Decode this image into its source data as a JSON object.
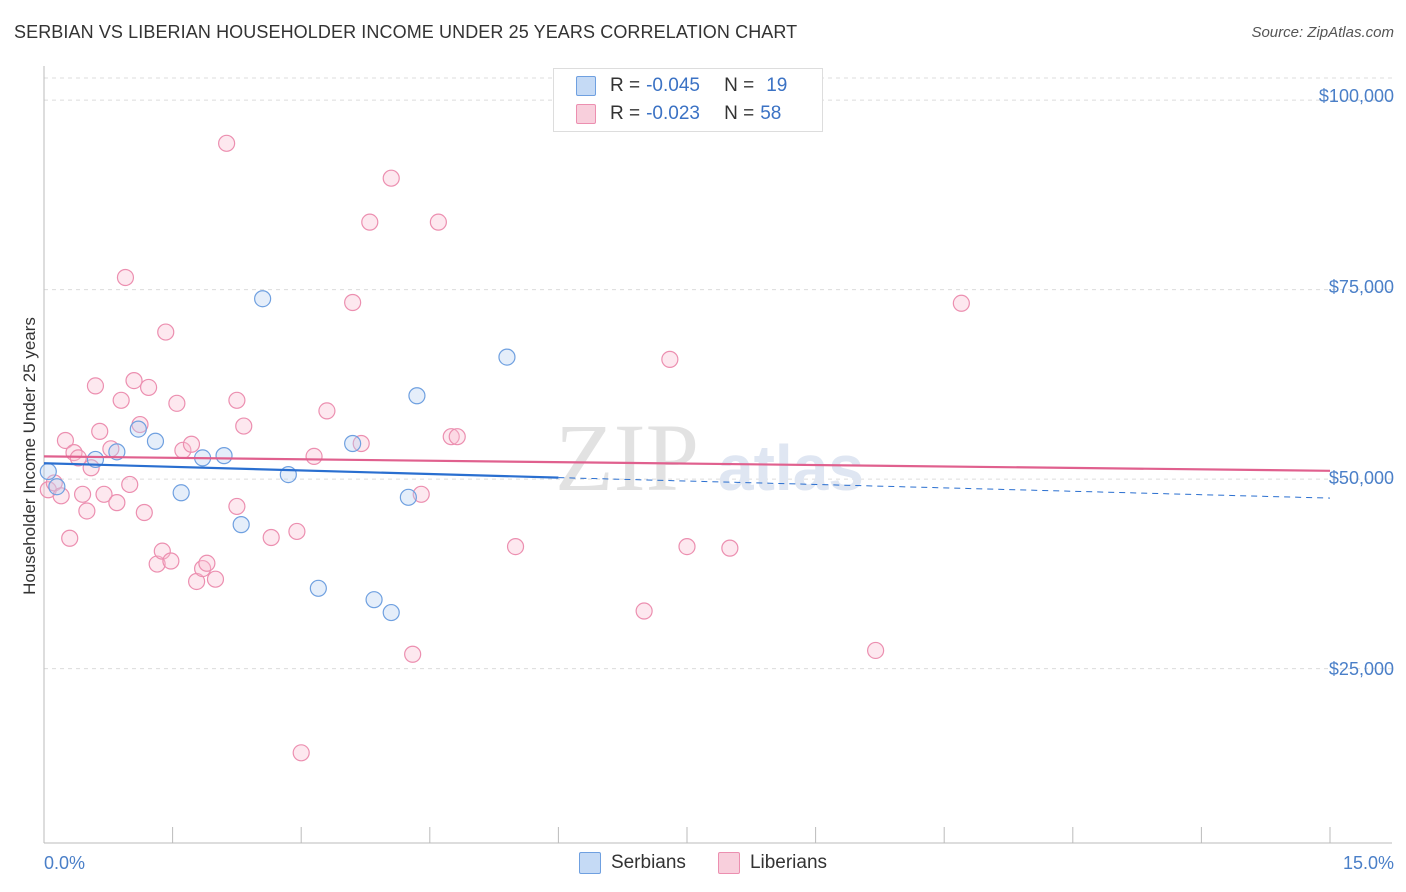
{
  "title": "SERBIAN VS LIBERIAN HOUSEHOLDER INCOME UNDER 25 YEARS CORRELATION CHART",
  "source": "Source: ZipAtlas.com",
  "watermark": {
    "zip": "ZIP",
    "atlas": "atlas"
  },
  "legend": {
    "serbians": {
      "r_label": "R =",
      "r_value": "-0.045",
      "n_label": "N =",
      "n_value": "19"
    },
    "liberians": {
      "r_label": "R =",
      "r_value": "-0.023",
      "n_label": "N =",
      "n_value": "58"
    }
  },
  "bottom_legend": {
    "serbians": "Serbians",
    "liberians": "Liberians"
  },
  "chart_data": {
    "type": "scatter",
    "title": "SERBIAN VS LIBERIAN HOUSEHOLDER INCOME UNDER 25 YEARS CORRELATION CHART",
    "xlabel": "",
    "ylabel": "Householder Income Under 25 years",
    "xlim": [
      0,
      15
    ],
    "ylim": [
      2000,
      104500
    ],
    "x_tick_labels": [
      "0.0%",
      "15.0%"
    ],
    "y_ticks": [
      25000,
      50000,
      75000,
      100000
    ],
    "y_tick_labels": [
      "$25,000",
      "$50,000",
      "$75,000",
      "$100,000"
    ],
    "colors": {
      "serbians": "#6fa0e0",
      "liberians": "#ec8fb0",
      "serbians_line": "#2a6fd0",
      "liberians_line": "#e0608e"
    },
    "series": [
      {
        "name": "Serbians",
        "points": [
          [
            0.05,
            51.0
          ],
          [
            0.6,
            52.6
          ],
          [
            0.85,
            53.6
          ],
          [
            1.1,
            56.6
          ],
          [
            1.3,
            55.0
          ],
          [
            1.6,
            48.2
          ],
          [
            1.85,
            52.8
          ],
          [
            2.1,
            53.1
          ],
          [
            2.3,
            44.0
          ],
          [
            2.55,
            73.8
          ],
          [
            2.85,
            50.6
          ],
          [
            3.2,
            35.6
          ],
          [
            3.6,
            54.7
          ],
          [
            3.85,
            34.1
          ],
          [
            4.05,
            32.4
          ],
          [
            4.25,
            47.6
          ],
          [
            4.35,
            61.0
          ],
          [
            5.4,
            66.1
          ],
          [
            0.15,
            49.0
          ]
        ],
        "trend": {
          "x0": 0,
          "y0": 52.1,
          "x1": 6.0,
          "y1": 50.2,
          "x_dash_end": 15.0,
          "y_dash_end": 47.5
        }
      },
      {
        "name": "Liberians",
        "points": [
          [
            0.05,
            48.6
          ],
          [
            0.12,
            49.5
          ],
          [
            0.2,
            47.8
          ],
          [
            0.25,
            55.1
          ],
          [
            0.3,
            42.2
          ],
          [
            0.35,
            53.5
          ],
          [
            0.4,
            52.8
          ],
          [
            0.45,
            48.0
          ],
          [
            0.5,
            45.8
          ],
          [
            0.55,
            51.5
          ],
          [
            0.6,
            62.3
          ],
          [
            0.65,
            56.3
          ],
          [
            0.7,
            48.0
          ],
          [
            0.78,
            54.0
          ],
          [
            0.85,
            46.9
          ],
          [
            0.9,
            60.4
          ],
          [
            0.95,
            76.6
          ],
          [
            1.0,
            49.3
          ],
          [
            1.05,
            63.0
          ],
          [
            1.12,
            57.2
          ],
          [
            1.17,
            45.6
          ],
          [
            1.22,
            62.1
          ],
          [
            1.32,
            38.8
          ],
          [
            1.38,
            40.5
          ],
          [
            1.42,
            69.4
          ],
          [
            1.48,
            39.2
          ],
          [
            1.55,
            60.0
          ],
          [
            1.62,
            53.8
          ],
          [
            1.72,
            54.6
          ],
          [
            1.78,
            36.5
          ],
          [
            1.85,
            38.2
          ],
          [
            1.9,
            38.9
          ],
          [
            2.0,
            36.8
          ],
          [
            2.13,
            94.3
          ],
          [
            2.25,
            46.4
          ],
          [
            2.25,
            60.4
          ],
          [
            2.33,
            57.0
          ],
          [
            2.65,
            42.3
          ],
          [
            2.95,
            43.1
          ],
          [
            3.0,
            13.9
          ],
          [
            3.15,
            53.0
          ],
          [
            3.3,
            59.0
          ],
          [
            3.6,
            73.3
          ],
          [
            3.7,
            54.7
          ],
          [
            3.8,
            83.9
          ],
          [
            4.05,
            89.7
          ],
          [
            4.3,
            26.9
          ],
          [
            4.4,
            48.0
          ],
          [
            4.6,
            83.9
          ],
          [
            4.75,
            55.6
          ],
          [
            4.82,
            55.6
          ],
          [
            5.5,
            41.1
          ],
          [
            7.0,
            32.6
          ],
          [
            7.3,
            65.8
          ],
          [
            7.5,
            41.1
          ],
          [
            8.0,
            40.9
          ],
          [
            9.7,
            27.4
          ],
          [
            10.7,
            73.2
          ]
        ],
        "trend": {
          "x0": 0,
          "y0": 53.0,
          "x1": 15.0,
          "y1": 51.1
        }
      }
    ],
    "point_units": "x in %, y in $ thousands"
  }
}
